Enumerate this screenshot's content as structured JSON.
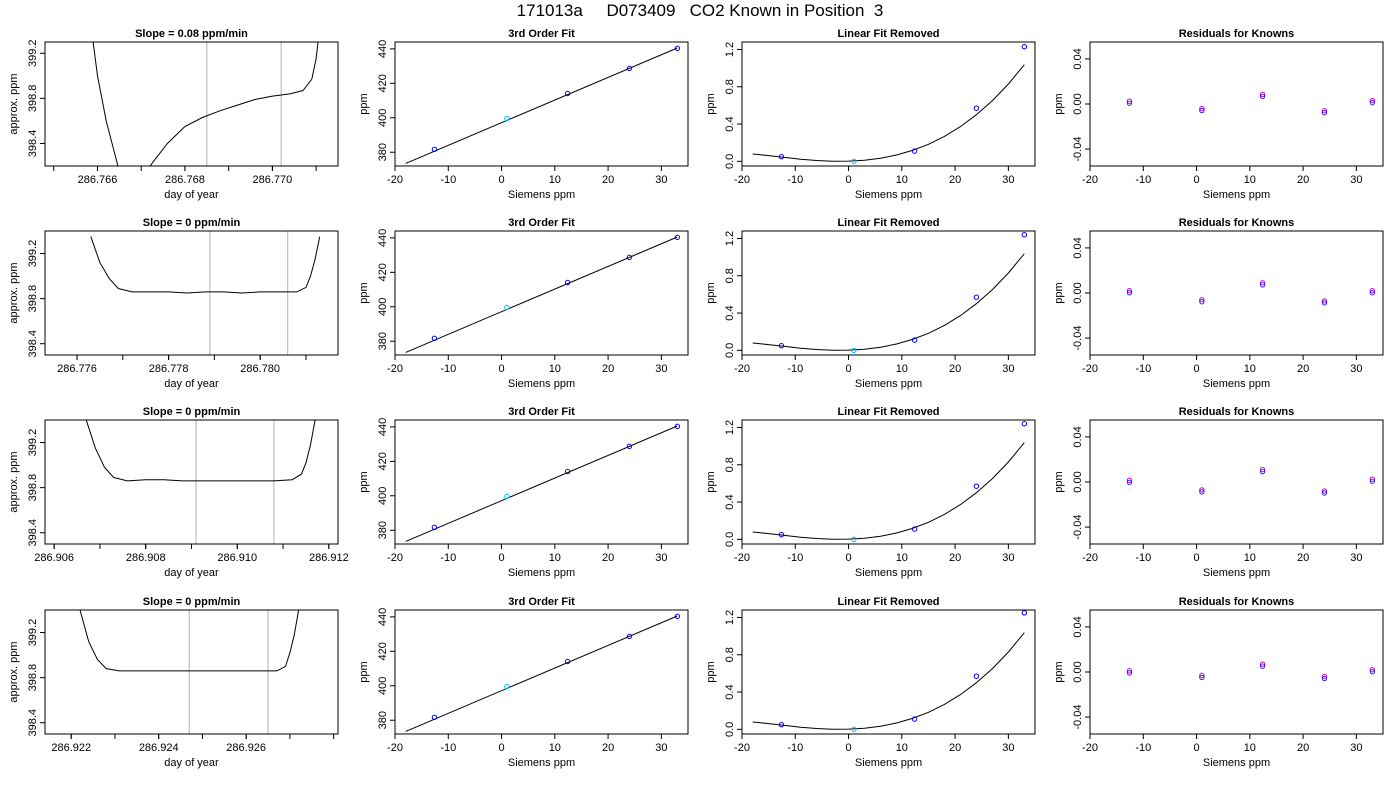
{
  "title": "171013a     D073409   CO2 Known in Position  3",
  "panel_titles": {
    "fit": "3rd Order Fit",
    "linear": "Linear Fit Removed",
    "residuals": "Residuals for Knowns"
  },
  "axis_labels": {
    "doy_x": "day of year",
    "doy_y": "approx. ppm",
    "siemens_x": "Siemens ppm",
    "ppm_y": "ppm"
  },
  "colors": {
    "line": "#000000",
    "point_blue": "#0000ff",
    "point_magenta": "#cc00cc",
    "point_cyan": "#00bfff",
    "vline": "#bfbfbf"
  },
  "chart_data": [
    {
      "row": 0,
      "panel": "time-series",
      "type": "line",
      "title": "Slope =  0.08  ppm/min",
      "xlim": [
        286.7648,
        286.7715
      ],
      "ylim": [
        398.2,
        399.3
      ],
      "xticks": [
        286.766,
        286.768,
        286.77
      ],
      "xtick_labels": [
        "286.766",
        "286.768",
        "286.770"
      ],
      "yticks": [
        398.4,
        398.8,
        399.2
      ],
      "ytick_labels": [
        "398.4",
        "398.8",
        "399.2"
      ],
      "vlines": [
        286.7685,
        286.7702
      ],
      "x": [
        286.7658,
        286.766,
        286.7662,
        286.7664,
        286.7666,
        286.7668,
        286.7672,
        286.7676,
        286.768,
        286.7684,
        286.7688,
        286.7692,
        286.7696,
        286.77,
        286.7704,
        286.7707,
        286.7709,
        286.771,
        286.7711
      ],
      "y": [
        399.6,
        399.0,
        398.6,
        398.3,
        398.0,
        397.9,
        398.2,
        398.4,
        398.55,
        398.63,
        398.69,
        398.74,
        398.79,
        398.82,
        398.84,
        398.87,
        398.97,
        399.15,
        399.5
      ]
    },
    {
      "row": 1,
      "panel": "time-series",
      "type": "line",
      "title": "Slope =  0  ppm/min",
      "xlim": [
        286.7753,
        286.7817
      ],
      "ylim": [
        398.3,
        399.4
      ],
      "xticks": [
        286.776,
        286.778,
        286.78
      ],
      "xtick_labels": [
        "286.776",
        "286.778",
        "286.780"
      ],
      "yticks": [
        398.4,
        398.8,
        399.2
      ],
      "ytick_labels": [
        "398.4",
        "398.8",
        "399.2"
      ],
      "vlines": [
        286.7789,
        286.7806
      ],
      "x": [
        286.7763,
        286.7765,
        286.7767,
        286.7769,
        286.7772,
        286.7776,
        286.778,
        286.7784,
        286.7788,
        286.7792,
        286.7796,
        286.78,
        286.7804,
        286.7808,
        286.781,
        286.7811,
        286.7812,
        286.7813
      ],
      "y": [
        399.35,
        399.12,
        398.98,
        398.89,
        398.86,
        398.86,
        398.86,
        398.85,
        398.86,
        398.86,
        398.85,
        398.86,
        398.86,
        398.86,
        398.9,
        399.0,
        399.15,
        399.35
      ]
    },
    {
      "row": 2,
      "panel": "time-series",
      "type": "line",
      "title": "Slope =  0  ppm/min",
      "xlim": [
        286.9058,
        286.9122
      ],
      "ylim": [
        398.3,
        399.4
      ],
      "xticks": [
        286.906,
        286.908,
        286.91,
        286.912
      ],
      "xtick_labels": [
        "286.906",
        "286.908",
        "286.910",
        "286.912"
      ],
      "yticks": [
        398.4,
        398.8,
        399.2
      ],
      "ytick_labels": [
        "398.4",
        "398.8",
        "399.2"
      ],
      "vlines": [
        286.9091,
        286.9108
      ],
      "x": [
        286.9067,
        286.9069,
        286.9071,
        286.9073,
        286.9076,
        286.908,
        286.9084,
        286.9088,
        286.9092,
        286.9096,
        286.91,
        286.9104,
        286.9108,
        286.9112,
        286.9114,
        286.9115,
        286.9116,
        286.9117
      ],
      "y": [
        399.4,
        399.15,
        398.98,
        398.89,
        398.86,
        398.87,
        398.87,
        398.86,
        398.86,
        398.86,
        398.86,
        398.86,
        398.86,
        398.87,
        398.92,
        399.02,
        399.18,
        399.4
      ]
    },
    {
      "row": 3,
      "panel": "time-series",
      "type": "line",
      "title": "Slope =  0  ppm/min",
      "xlim": [
        286.9214,
        286.9281
      ],
      "ylim": [
        398.3,
        399.4
      ],
      "xticks": [
        286.922,
        286.924,
        286.926
      ],
      "xtick_labels": [
        "286.922",
        "286.924",
        "286.926"
      ],
      "yticks": [
        398.4,
        398.8,
        399.2
      ],
      "ytick_labels": [
        "398.4",
        "398.8",
        "399.2"
      ],
      "vlines": [
        286.9247,
        286.9265
      ],
      "x": [
        286.9222,
        286.9224,
        286.9226,
        286.9228,
        286.9231,
        286.9235,
        286.9239,
        286.9243,
        286.9247,
        286.9251,
        286.9255,
        286.9259,
        286.9263,
        286.9267,
        286.9269,
        286.927,
        286.9271,
        286.9272
      ],
      "y": [
        399.4,
        399.12,
        398.96,
        398.88,
        398.86,
        398.86,
        398.86,
        398.86,
        398.86,
        398.86,
        398.86,
        398.86,
        398.86,
        398.86,
        398.9,
        399.02,
        399.18,
        399.4
      ]
    },
    {
      "row": 0,
      "panel": "fit",
      "type": "scatter",
      "xlim": [
        -20,
        35
      ],
      "ylim": [
        372,
        444
      ],
      "xticks": [
        -20,
        -10,
        0,
        10,
        20,
        30
      ],
      "yticks": [
        380,
        400,
        420,
        440
      ],
      "curve": {
        "x": [
          -18,
          33
        ],
        "y": [
          373.5,
          440.5
        ]
      },
      "points_x": [
        -12.6,
        1.0,
        12.4,
        24.0,
        33.0
      ],
      "points_y": [
        381.7,
        399.6,
        414.1,
        428.7,
        440.3
      ]
    },
    {
      "row": 1,
      "panel": "fit",
      "type": "scatter",
      "xlim": [
        -20,
        35
      ],
      "ylim": [
        372,
        444
      ],
      "xticks": [
        -20,
        -10,
        0,
        10,
        20,
        30
      ],
      "yticks": [
        380,
        400,
        420,
        440
      ],
      "curve": {
        "x": [
          -18,
          33
        ],
        "y": [
          373.5,
          440.5
        ]
      },
      "points_x": [
        -12.6,
        1.0,
        12.4,
        24.0,
        33.0
      ],
      "points_y": [
        381.7,
        399.6,
        414.1,
        428.7,
        440.3
      ]
    },
    {
      "row": 2,
      "panel": "fit",
      "type": "scatter",
      "xlim": [
        -20,
        35
      ],
      "ylim": [
        372,
        444
      ],
      "xticks": [
        -20,
        -10,
        0,
        10,
        20,
        30
      ],
      "yticks": [
        380,
        400,
        420,
        440
      ],
      "curve": {
        "x": [
          -18,
          33
        ],
        "y": [
          373.5,
          440.5
        ]
      },
      "points_x": [
        -12.6,
        1.0,
        12.4,
        24.0,
        33.0
      ],
      "points_y": [
        381.7,
        399.6,
        414.1,
        428.7,
        440.3
      ]
    },
    {
      "row": 3,
      "panel": "fit",
      "type": "scatter",
      "xlim": [
        -20,
        35
      ],
      "ylim": [
        372,
        444
      ],
      "xticks": [
        -20,
        -10,
        0,
        10,
        20,
        30
      ],
      "yticks": [
        380,
        400,
        420,
        440
      ],
      "curve": {
        "x": [
          -18,
          33
        ],
        "y": [
          373.5,
          440.5
        ]
      },
      "points_x": [
        -12.6,
        1.0,
        12.4,
        24.0,
        33.0
      ],
      "points_y": [
        381.7,
        399.6,
        414.1,
        428.7,
        440.3
      ]
    },
    {
      "row": 0,
      "panel": "linear",
      "type": "scatter",
      "xlim": [
        -20,
        35
      ],
      "ylim": [
        -0.05,
        1.28
      ],
      "xticks": [
        -20,
        -10,
        0,
        10,
        20,
        30
      ],
      "yticks": [
        0.0,
        0.4,
        0.8,
        1.2
      ],
      "ytick_labels": [
        "0.0",
        "0.4",
        "0.8",
        "1.2"
      ],
      "curve": {
        "x": [
          -18,
          -15,
          -12,
          -9,
          -6,
          -3,
          0,
          3,
          6,
          9,
          12,
          15,
          18,
          21,
          24,
          27,
          30,
          33
        ],
        "y": [
          0.079,
          0.062,
          0.042,
          0.023,
          0.009,
          0.002,
          0.003,
          0.012,
          0.033,
          0.068,
          0.117,
          0.183,
          0.268,
          0.373,
          0.5,
          0.652,
          0.83,
          1.036
        ]
      },
      "points_x": [
        -12.6,
        1.0,
        12.4,
        24.0,
        33.0
      ],
      "points_y": [
        0.05,
        0.0,
        0.11,
        0.57,
        1.23
      ]
    },
    {
      "row": 1,
      "panel": "linear",
      "type": "scatter",
      "xlim": [
        -20,
        35
      ],
      "ylim": [
        -0.05,
        1.28
      ],
      "xticks": [
        -20,
        -10,
        0,
        10,
        20,
        30
      ],
      "yticks": [
        0.0,
        0.4,
        0.8,
        1.2
      ],
      "ytick_labels": [
        "0.0",
        "0.4",
        "0.8",
        "1.2"
      ],
      "curve": {
        "x": [
          -18,
          -15,
          -12,
          -9,
          -6,
          -3,
          0,
          3,
          6,
          9,
          12,
          15,
          18,
          21,
          24,
          27,
          30,
          33
        ],
        "y": [
          0.079,
          0.062,
          0.042,
          0.023,
          0.009,
          0.002,
          0.003,
          0.012,
          0.033,
          0.068,
          0.117,
          0.183,
          0.268,
          0.373,
          0.5,
          0.652,
          0.83,
          1.036
        ]
      },
      "points_x": [
        -12.6,
        1.0,
        12.4,
        24.0,
        33.0
      ],
      "points_y": [
        0.05,
        0.0,
        0.11,
        0.57,
        1.24
      ]
    },
    {
      "row": 2,
      "panel": "linear",
      "type": "scatter",
      "xlim": [
        -20,
        35
      ],
      "ylim": [
        -0.05,
        1.28
      ],
      "xticks": [
        -20,
        -10,
        0,
        10,
        20,
        30
      ],
      "yticks": [
        0.0,
        0.4,
        0.8,
        1.2
      ],
      "ytick_labels": [
        "0.0",
        "0.4",
        "0.8",
        "1.2"
      ],
      "curve": {
        "x": [
          -18,
          -15,
          -12,
          -9,
          -6,
          -3,
          0,
          3,
          6,
          9,
          12,
          15,
          18,
          21,
          24,
          27,
          30,
          33
        ],
        "y": [
          0.079,
          0.062,
          0.042,
          0.023,
          0.009,
          0.002,
          0.003,
          0.012,
          0.033,
          0.068,
          0.117,
          0.183,
          0.268,
          0.373,
          0.5,
          0.652,
          0.83,
          1.036
        ]
      },
      "points_x": [
        -12.6,
        1.0,
        12.4,
        24.0,
        33.0
      ],
      "points_y": [
        0.05,
        0.0,
        0.11,
        0.57,
        1.24
      ]
    },
    {
      "row": 3,
      "panel": "linear",
      "type": "scatter",
      "xlim": [
        -20,
        35
      ],
      "ylim": [
        -0.05,
        1.28
      ],
      "xticks": [
        -20,
        -10,
        0,
        10,
        20,
        30
      ],
      "yticks": [
        0.0,
        0.4,
        0.8,
        1.2
      ],
      "ytick_labels": [
        "0.0",
        "0.4",
        "0.8",
        "1.2"
      ],
      "curve": {
        "x": [
          -18,
          -15,
          -12,
          -9,
          -6,
          -3,
          0,
          3,
          6,
          9,
          12,
          15,
          18,
          21,
          24,
          27,
          30,
          33
        ],
        "y": [
          0.079,
          0.062,
          0.042,
          0.023,
          0.009,
          0.002,
          0.003,
          0.012,
          0.033,
          0.068,
          0.117,
          0.183,
          0.268,
          0.373,
          0.5,
          0.652,
          0.83,
          1.036
        ]
      },
      "points_x": [
        -12.6,
        1.0,
        12.4,
        24.0,
        33.0
      ],
      "points_y": [
        0.05,
        0.0,
        0.11,
        0.57,
        1.25
      ]
    },
    {
      "row": 0,
      "panel": "residuals",
      "type": "scatter",
      "xlim": [
        -20,
        35
      ],
      "ylim": [
        -0.055,
        0.055
      ],
      "xticks": [
        -20,
        -10,
        0,
        10,
        20,
        30
      ],
      "yticks": [
        -0.04,
        0.0,
        0.04
      ],
      "ytick_labels": [
        "-0.04",
        "0.00",
        "0.04"
      ],
      "points_x": [
        -12.6,
        1.0,
        12.4,
        24.0,
        33.0
      ],
      "points_y": [
        0.0025,
        -0.004,
        0.0085,
        -0.006,
        0.003
      ]
    },
    {
      "row": 1,
      "panel": "residuals",
      "type": "scatter",
      "xlim": [
        -20,
        35
      ],
      "ylim": [
        -0.055,
        0.055
      ],
      "xticks": [
        -20,
        -10,
        0,
        10,
        20,
        30
      ],
      "yticks": [
        -0.04,
        0.0,
        0.04
      ],
      "ytick_labels": [
        "-0.04",
        "0.00",
        "0.04"
      ],
      "points_x": [
        -12.6,
        1.0,
        12.4,
        24.0,
        33.0
      ],
      "points_y": [
        0.002,
        -0.006,
        0.009,
        -0.007,
        0.002
      ]
    },
    {
      "row": 2,
      "panel": "residuals",
      "type": "scatter",
      "xlim": [
        -20,
        35
      ],
      "ylim": [
        -0.055,
        0.055
      ],
      "xticks": [
        -20,
        -10,
        0,
        10,
        20,
        30
      ],
      "yticks": [
        -0.04,
        0.0,
        0.04
      ],
      "ytick_labels": [
        "-0.04",
        "0.00",
        "0.04"
      ],
      "points_x": [
        -12.6,
        1.0,
        12.4,
        24.0,
        33.0
      ],
      "points_y": [
        0.0015,
        -0.007,
        0.011,
        -0.008,
        0.0025
      ]
    },
    {
      "row": 3,
      "panel": "residuals",
      "type": "scatter",
      "xlim": [
        -20,
        35
      ],
      "ylim": [
        -0.055,
        0.055
      ],
      "xticks": [
        -20,
        -10,
        0,
        10,
        20,
        30
      ],
      "yticks": [
        -0.04,
        0.0,
        0.04
      ],
      "ytick_labels": [
        "-0.04",
        "0.00",
        "0.04"
      ],
      "points_x": [
        -12.6,
        1.0,
        12.4,
        24.0,
        33.0
      ],
      "points_y": [
        0.001,
        -0.003,
        0.007,
        -0.004,
        0.002
      ]
    }
  ]
}
